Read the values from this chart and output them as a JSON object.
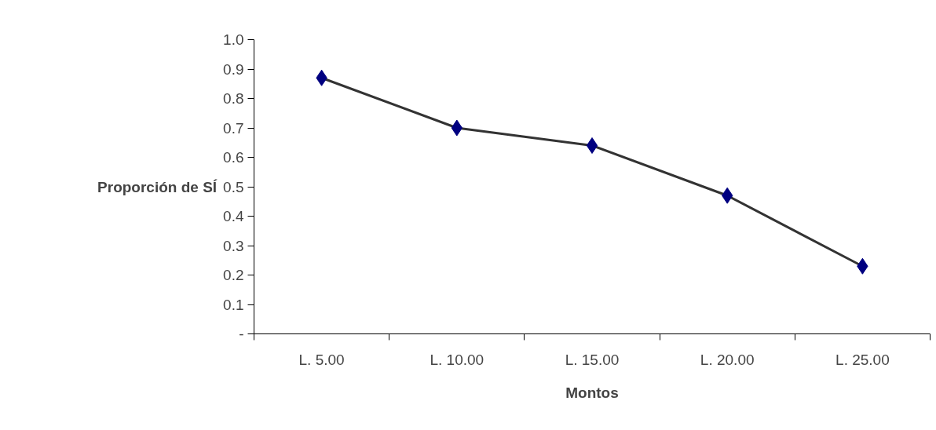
{
  "chart_data": {
    "type": "line",
    "xlabel": "Montos",
    "ylabel": "Proporción de SÍ",
    "categories": [
      "L. 5.00",
      "L. 10.00",
      "L. 15.00",
      "L. 20.00",
      "L. 25.00"
    ],
    "series": [
      {
        "color": "#000080",
        "values": [
          0.87,
          0.7,
          0.64,
          0.47,
          0.23
        ]
      }
    ],
    "ylim": [
      0,
      1.0
    ],
    "yticks": [
      {
        "value": 0,
        "label": "-"
      },
      0.1,
      0.2,
      0.3,
      0.4,
      0.5,
      0.6,
      0.7,
      0.8,
      0.9,
      {
        "value": 1.0,
        "label": "1.0"
      }
    ],
    "grid": false,
    "marker": "diamond",
    "line_style": "solid"
  }
}
